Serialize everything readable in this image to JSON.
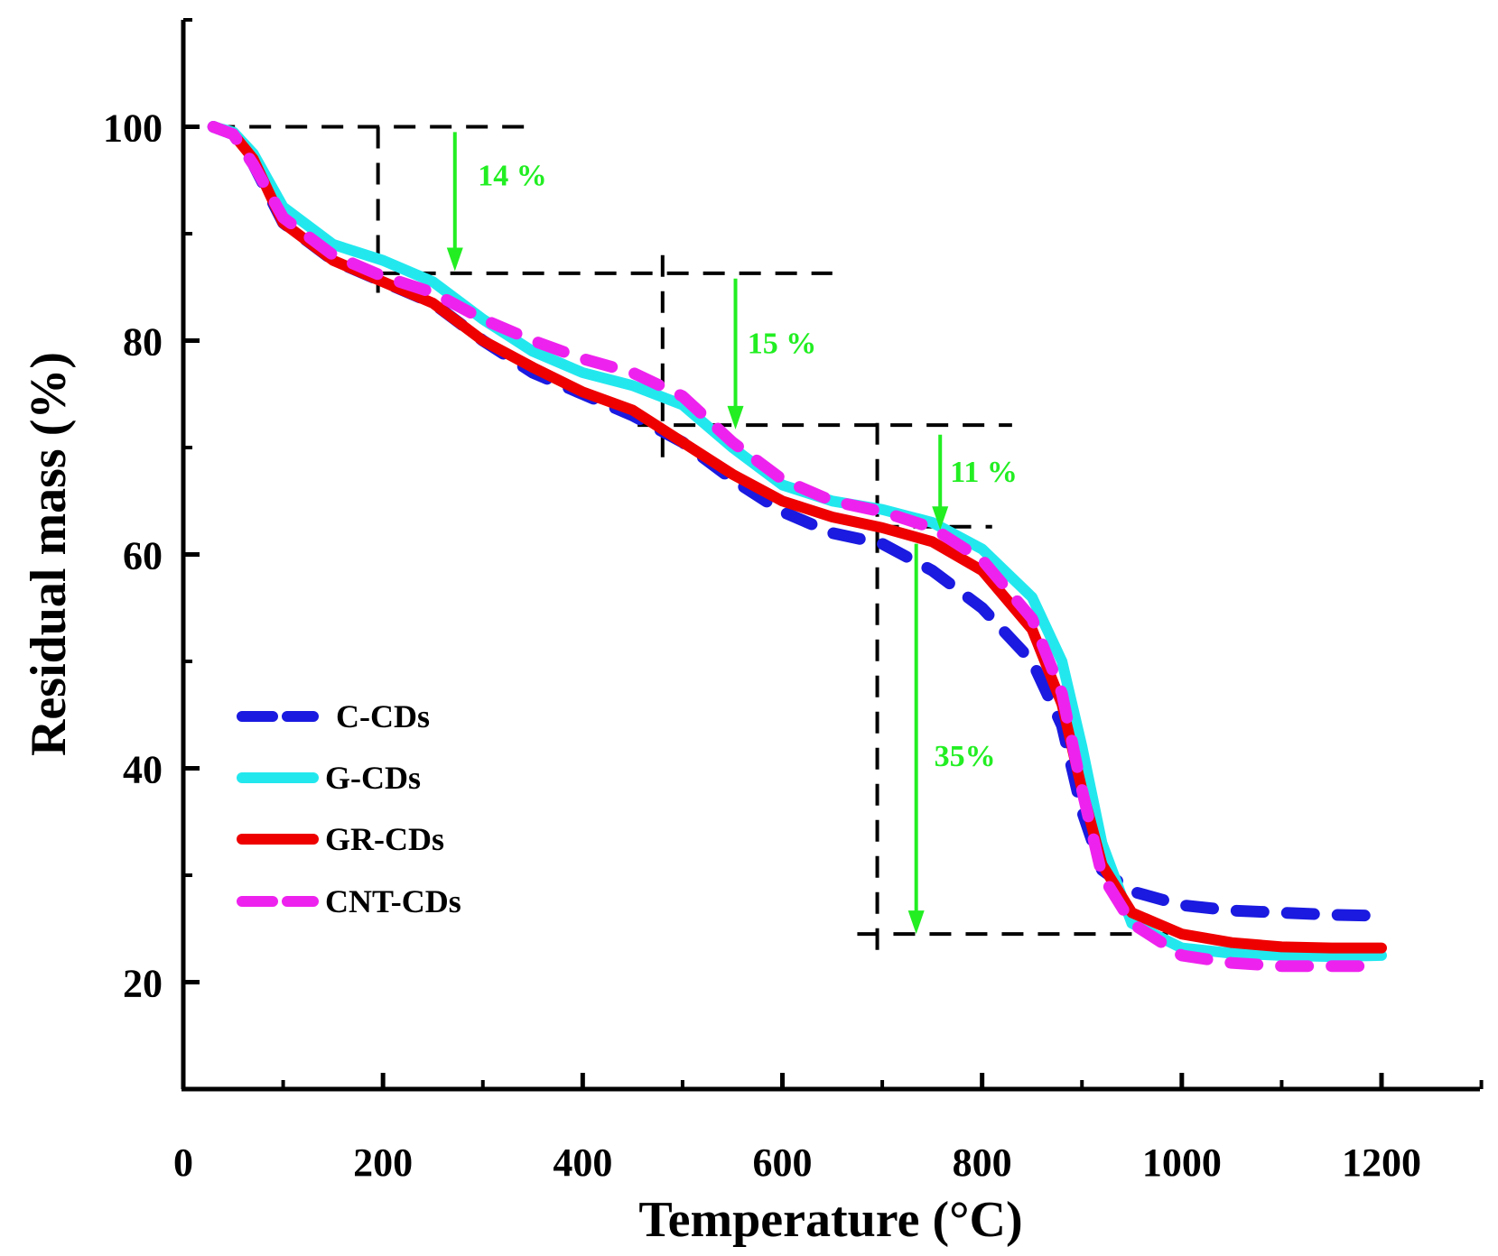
{
  "chart_data": {
    "type": "line",
    "title": "",
    "xlabel": "Temperature (°C)",
    "ylabel": "Residual mass (%)",
    "xlim": [
      0,
      1300
    ],
    "ylim": [
      10,
      110
    ],
    "x_ticks": [
      0,
      200,
      400,
      600,
      800,
      1000,
      1200
    ],
    "y_ticks": [
      20,
      40,
      60,
      80,
      100
    ],
    "x_tick_labels": [
      "0",
      "200",
      "400",
      "600",
      "800",
      "1000",
      "1200"
    ],
    "y_tick_labels": [
      "20",
      "40",
      "60",
      "80",
      "100"
    ],
    "legend_position": "center-left",
    "series": [
      {
        "name": "C-CDs",
        "color": "#1a1ae0",
        "style": "dashed",
        "points": [
          [
            30,
            100
          ],
          [
            50,
            99.3
          ],
          [
            70,
            96.5
          ],
          [
            100,
            91
          ],
          [
            150,
            87.5
          ],
          [
            200,
            85.5
          ],
          [
            250,
            83.5
          ],
          [
            300,
            80
          ],
          [
            350,
            77
          ],
          [
            400,
            75
          ],
          [
            450,
            73
          ],
          [
            500,
            70.5
          ],
          [
            550,
            67
          ],
          [
            600,
            64
          ],
          [
            650,
            62
          ],
          [
            700,
            61
          ],
          [
            750,
            58.5
          ],
          [
            800,
            55
          ],
          [
            850,
            50
          ],
          [
            880,
            44
          ],
          [
            900,
            36
          ],
          [
            920,
            30.5
          ],
          [
            950,
            28.5
          ],
          [
            1000,
            27.2
          ],
          [
            1050,
            26.7
          ],
          [
            1100,
            26.5
          ],
          [
            1150,
            26.3
          ],
          [
            1200,
            26.2
          ]
        ]
      },
      {
        "name": "G-CDs",
        "color": "#22e8ee",
        "style": "solid",
        "points": [
          [
            30,
            100
          ],
          [
            50,
            99.5
          ],
          [
            70,
            97.5
          ],
          [
            100,
            92.5
          ],
          [
            150,
            89
          ],
          [
            200,
            87.5
          ],
          [
            250,
            85.5
          ],
          [
            300,
            82
          ],
          [
            350,
            79
          ],
          [
            400,
            77
          ],
          [
            450,
            75.8
          ],
          [
            500,
            74
          ],
          [
            550,
            70
          ],
          [
            600,
            66.5
          ],
          [
            650,
            65
          ],
          [
            700,
            64.2
          ],
          [
            750,
            63
          ],
          [
            800,
            60.5
          ],
          [
            850,
            56
          ],
          [
            880,
            50
          ],
          [
            900,
            42
          ],
          [
            920,
            33
          ],
          [
            950,
            25.5
          ],
          [
            1000,
            23.2
          ],
          [
            1050,
            22.7
          ],
          [
            1100,
            22.5
          ],
          [
            1150,
            22.4
          ],
          [
            1200,
            22.5
          ]
        ]
      },
      {
        "name": "GR-CDs",
        "color": "#ee0000",
        "style": "solid",
        "points": [
          [
            30,
            100
          ],
          [
            50,
            99.3
          ],
          [
            70,
            97
          ],
          [
            100,
            91
          ],
          [
            150,
            87.5
          ],
          [
            200,
            85.5
          ],
          [
            250,
            83.5
          ],
          [
            300,
            80
          ],
          [
            350,
            77.5
          ],
          [
            400,
            75.2
          ],
          [
            450,
            73.5
          ],
          [
            500,
            70.5
          ],
          [
            550,
            67.5
          ],
          [
            600,
            65
          ],
          [
            650,
            63.5
          ],
          [
            700,
            62.5
          ],
          [
            750,
            61.2
          ],
          [
            800,
            58.5
          ],
          [
            850,
            53
          ],
          [
            880,
            46
          ],
          [
            900,
            38
          ],
          [
            920,
            31
          ],
          [
            950,
            26.5
          ],
          [
            1000,
            24.5
          ],
          [
            1050,
            23.7
          ],
          [
            1100,
            23.3
          ],
          [
            1150,
            23.2
          ],
          [
            1200,
            23.2
          ]
        ]
      },
      {
        "name": "CNT-CDs",
        "color": "#ee22ee",
        "style": "dashed",
        "points": [
          [
            30,
            100
          ],
          [
            50,
            99.3
          ],
          [
            70,
            96.5
          ],
          [
            100,
            91.5
          ],
          [
            150,
            88
          ],
          [
            200,
            86
          ],
          [
            250,
            84.5
          ],
          [
            300,
            82
          ],
          [
            350,
            80
          ],
          [
            400,
            78.3
          ],
          [
            450,
            77
          ],
          [
            500,
            74.8
          ],
          [
            550,
            70.5
          ],
          [
            600,
            67
          ],
          [
            650,
            65
          ],
          [
            700,
            64
          ],
          [
            750,
            62.5
          ],
          [
            800,
            59.5
          ],
          [
            850,
            54
          ],
          [
            880,
            47
          ],
          [
            900,
            38
          ],
          [
            920,
            30
          ],
          [
            950,
            25.5
          ],
          [
            1000,
            22.5
          ],
          [
            1050,
            21.8
          ],
          [
            1100,
            21.5
          ],
          [
            1150,
            21.5
          ],
          [
            1200,
            21.5
          ]
        ]
      }
    ],
    "annotations": {
      "color": "#22ee22",
      "guide_color": "#000000",
      "labels": [
        {
          "text": "14 %",
          "x": 295,
          "y": 94.5
        },
        {
          "text": "15 %",
          "x": 565,
          "y": 78.8
        },
        {
          "text": "11 %",
          "x": 768,
          "y": 66.8
        },
        {
          "text": "35%",
          "x": 752,
          "y": 40.2
        }
      ],
      "arrows": [
        {
          "x": 272,
          "from": 99.5,
          "to": 86.5
        },
        {
          "x": 553,
          "from": 85.8,
          "to": 71.7
        },
        {
          "x": 758,
          "from": 71.2,
          "to": 62.3
        },
        {
          "x": 734,
          "from": 61,
          "to": 24.5
        }
      ],
      "guides": [
        {
          "x1": 30,
          "y1": 100,
          "x2": 350,
          "y2": 100
        },
        {
          "x1": 195,
          "y1": 100,
          "x2": 195,
          "y2": 83.3
        },
        {
          "x1": 195,
          "y1": 86.3,
          "x2": 650,
          "y2": 86.3
        },
        {
          "x1": 480,
          "y1": 88,
          "x2": 480,
          "y2": 68.5
        },
        {
          "x1": 455,
          "y1": 72.1,
          "x2": 830,
          "y2": 72.1
        },
        {
          "x1": 695,
          "y1": 72.3,
          "x2": 695,
          "y2": 22.2
        },
        {
          "x1": 695,
          "y1": 62.6,
          "x2": 810,
          "y2": 62.6
        },
        {
          "x1": 675,
          "y1": 24.5,
          "x2": 1000,
          "y2": 24.5
        }
      ]
    }
  }
}
